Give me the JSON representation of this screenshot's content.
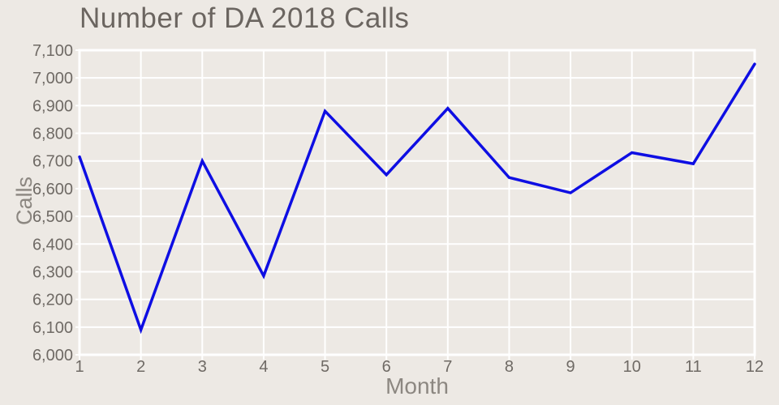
{
  "chart_data": {
    "type": "line",
    "title": "Number of DA 2018 Calls",
    "xlabel": "Month",
    "ylabel": "Calls",
    "x": [
      1,
      2,
      3,
      4,
      5,
      6,
      7,
      8,
      9,
      10,
      11,
      12
    ],
    "values": [
      6715,
      6090,
      6700,
      6285,
      6880,
      6650,
      6890,
      6640,
      6585,
      6730,
      6690,
      7050
    ],
    "xlim": [
      1,
      12
    ],
    "ylim": [
      6000,
      7100
    ],
    "x_ticks": [
      1,
      2,
      3,
      4,
      5,
      6,
      7,
      8,
      9,
      10,
      11,
      12
    ],
    "y_ticks": [
      6000,
      6100,
      6200,
      6300,
      6400,
      6500,
      6600,
      6700,
      6800,
      6900,
      7000,
      7100
    ],
    "grid": true,
    "legend": false,
    "line_color": "#0E0EE3",
    "style": {
      "background": "#EDE9E4",
      "grid_color": "#FFFFFF",
      "title_color": "#6B6560",
      "tick_label_color": "#6F6A65",
      "axis_label_color": "#8C8781"
    }
  }
}
